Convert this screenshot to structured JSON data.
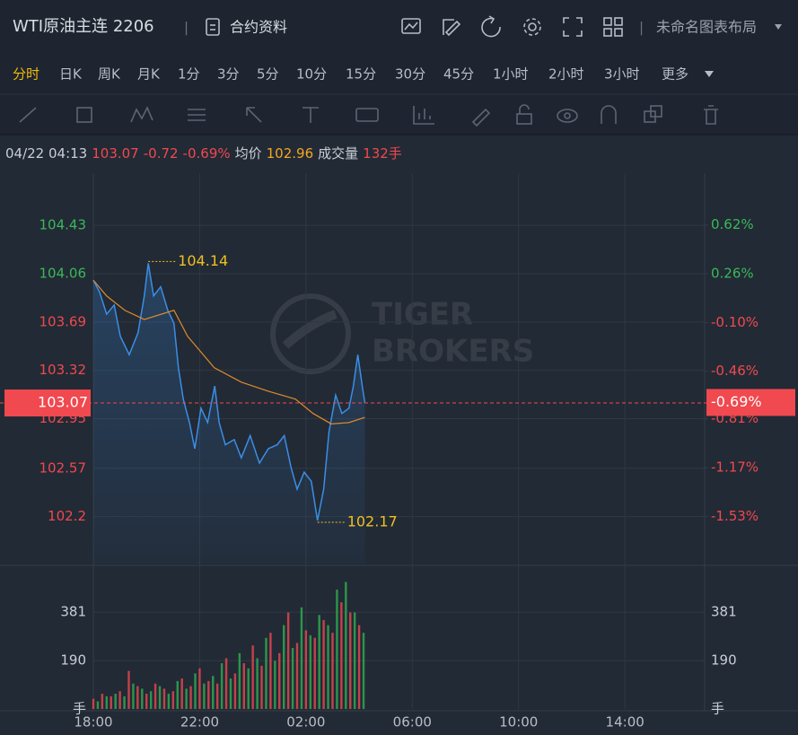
{
  "header": {
    "title": "WTI原油主连 2206",
    "contract_info": "合约资料",
    "layout_name": "未命名图表布局"
  },
  "periods": {
    "items": [
      "分时",
      "日K",
      "周K",
      "月K",
      "1分",
      "3分",
      "5分",
      "10分",
      "15分",
      "30分",
      "45分",
      "1小时",
      "2小时",
      "3小时",
      "更多"
    ],
    "active": 0
  },
  "info": {
    "time": "04/22 04:13",
    "price": 103.07,
    "change": -0.72,
    "pct_change": {
      "value": -0.69,
      "label": "-0.69%"
    },
    "avg_label": "均价",
    "avg": 102.96,
    "volume_label": "成交量",
    "volume": {
      "value": 132,
      "label": "132手"
    }
  },
  "watermark": {
    "line1": "TIGER",
    "line2": "BROKERS"
  },
  "chart": {
    "up_color": "#3bb85a",
    "down_color": "#f0494f",
    "line_color": "#3a8ee6",
    "avg_color": "#e08a2c",
    "grid": true,
    "xlim": [
      0,
      1380
    ],
    "xticks": [
      {
        "value": 0,
        "label": "18:00"
      },
      {
        "value": 240,
        "label": "22:00"
      },
      {
        "value": 480,
        "label": "02:00"
      },
      {
        "value": 720,
        "label": "06:00"
      },
      {
        "value": 960,
        "label": "10:00"
      },
      {
        "value": 1200,
        "label": "14:00"
      }
    ],
    "ylim": [
      101.84,
      104.83
    ],
    "yticks": [
      104.43,
      104.06,
      103.69,
      103.32,
      102.95,
      102.57,
      102.2
    ],
    "y2lim": [
      -1.879,
      1.002
    ],
    "y2ticks": [
      {
        "value": 0.62,
        "label": "0.62%"
      },
      {
        "value": 0.26,
        "label": "0.26%"
      },
      {
        "value": -0.1,
        "label": "-0.10%"
      },
      {
        "value": -0.46,
        "label": "-0.46%"
      },
      {
        "value": -0.81,
        "label": "-0.81%"
      },
      {
        "value": -1.17,
        "label": "-1.17%"
      },
      {
        "value": -1.53,
        "label": "-1.53%"
      }
    ],
    "price": {
      "x": [
        0,
        14,
        30,
        47,
        61,
        81,
        101,
        115,
        124,
        136,
        152,
        168,
        182,
        192,
        203,
        217,
        229,
        243,
        258,
        274,
        284,
        298,
        318,
        334,
        354,
        375,
        395,
        415,
        431,
        446,
        460,
        476,
        492,
        506,
        520,
        532,
        547,
        561,
        577,
        587,
        597,
        607,
        613
      ],
      "values": [
        104.01,
        103.92,
        103.75,
        103.82,
        103.58,
        103.44,
        103.61,
        103.89,
        104.14,
        103.89,
        103.96,
        103.78,
        103.68,
        103.34,
        103.1,
        102.92,
        102.72,
        103.03,
        102.92,
        103.2,
        102.92,
        102.75,
        102.79,
        102.65,
        102.82,
        102.61,
        102.72,
        102.75,
        102.82,
        102.58,
        102.41,
        102.54,
        102.47,
        102.17,
        102.41,
        102.85,
        103.13,
        102.99,
        103.03,
        103.2,
        103.44,
        103.2,
        103.07
      ]
    },
    "high_index": 8,
    "low_index": 33,
    "avg_line": {
      "x": [
        0,
        30,
        71,
        115,
        182,
        213,
        273,
        334,
        395,
        456,
        496,
        537,
        577,
        613
      ],
      "values": [
        104.01,
        103.89,
        103.78,
        103.71,
        103.78,
        103.58,
        103.34,
        103.23,
        103.16,
        103.1,
        102.99,
        102.91,
        102.92,
        102.96
      ]
    },
    "volume_unit": "手",
    "vlim": [
      0,
      530
    ],
    "vticks": [
      381,
      190
    ],
    "volume_series": [
      {
        "color": "#e0454f",
        "x": [
          0,
          20,
          40,
          60,
          80,
          100,
          120,
          140,
          160,
          180,
          200,
          220,
          240,
          260,
          280,
          300,
          320,
          340,
          360,
          380,
          400,
          420,
          440,
          460,
          480,
          500,
          520,
          540,
          560,
          580,
          600
        ],
        "values": [
          40,
          60,
          50,
          70,
          150,
          90,
          60,
          100,
          80,
          70,
          120,
          90,
          160,
          110,
          100,
          200,
          140,
          180,
          250,
          170,
          300,
          220,
          380,
          260,
          310,
          280,
          350,
          300,
          420,
          380,
          330
        ]
      },
      {
        "color": "#2ea84f",
        "x": [
          10,
          30,
          50,
          70,
          90,
          110,
          130,
          150,
          170,
          190,
          210,
          230,
          250,
          270,
          290,
          310,
          330,
          350,
          370,
          390,
          410,
          430,
          450,
          470,
          490,
          510,
          530,
          550,
          570,
          590,
          610
        ],
        "values": [
          30,
          50,
          60,
          50,
          100,
          80,
          70,
          90,
          60,
          110,
          80,
          140,
          100,
          130,
          180,
          120,
          220,
          160,
          200,
          280,
          190,
          330,
          240,
          400,
          290,
          370,
          330,
          470,
          500,
          380,
          300
        ]
      }
    ]
  }
}
